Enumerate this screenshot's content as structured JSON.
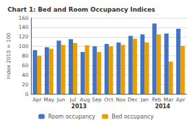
{
  "chart_data": {
    "type": "bar",
    "title": "Chart 1: Bed and Room Occupancy Indices",
    "ylabel": "Index 2010 = 100",
    "categories": [
      "Apr",
      "May",
      "Jun",
      "Jul",
      "Aug",
      "Sep",
      "Oct",
      "Nov",
      "Dec",
      "Jan",
      "Feb",
      "Mar",
      "Apr"
    ],
    "series": [
      {
        "name": "Room occupancy",
        "color": "#4472C4",
        "values": [
          92,
          98,
          112,
          115,
          88,
          100,
          105,
          108,
          122,
          125,
          148,
          127,
          137
        ]
      },
      {
        "name": "Bed occupancy",
        "color": "#E8A000",
        "values": [
          80,
          95,
          103,
          107,
          102,
          88,
          100,
          103,
          116,
          108,
          125,
          68,
          101
        ]
      }
    ],
    "annotations": [
      {
        "text": "2013",
        "x": 3.5
      },
      {
        "text": "2014",
        "x": 10.5
      }
    ],
    "ylim": [
      0,
      160
    ],
    "yticks": [
      0,
      20,
      40,
      60,
      80,
      100,
      120,
      140,
      160
    ],
    "grid": true,
    "legend": "bottom"
  }
}
